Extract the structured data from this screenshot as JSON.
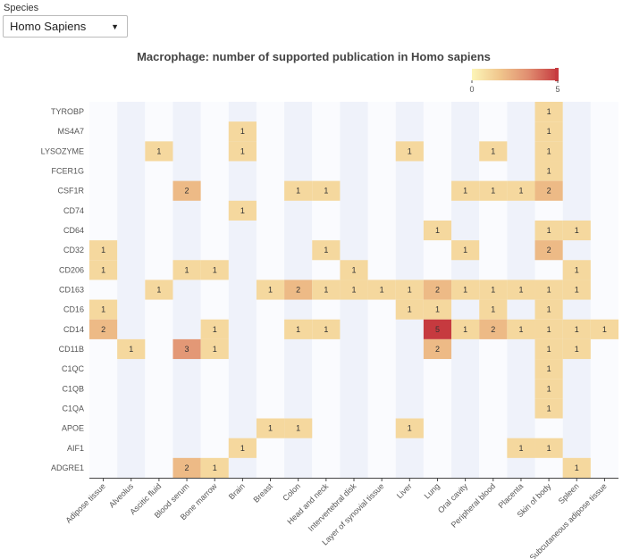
{
  "species": {
    "label": "Species",
    "selected": "Homo Sapiens"
  },
  "chart_data": {
    "type": "heatmap",
    "title": "Macrophage: number of supported publication in Homo sapiens",
    "x_categories": [
      "Adipose tissue",
      "Alveolus",
      "Ascitic fluid",
      "Blood serum",
      "Bone marrow",
      "Brain",
      "Breast",
      "Colon",
      "Head and neck",
      "Intervertebral disk",
      "Layer of synovial tissue",
      "Liver",
      "Lung",
      "Oral cavity",
      "Peripheral blood",
      "Placenta",
      "Skin of body",
      "Spleen",
      "Subcutaneous adipose tissue"
    ],
    "y_categories": [
      "TYROBP",
      "MS4A7",
      "LYSOZYME",
      "FCER1G",
      "CSF1R",
      "CD74",
      "CD64",
      "CD32",
      "CD206",
      "CD163",
      "CD16",
      "CD14",
      "CD11B",
      "C1QC",
      "C1QB",
      "C1QA",
      "APOE",
      "AIF1",
      "ADGRE1"
    ],
    "values": [
      [
        0,
        0,
        0,
        0,
        0,
        0,
        0,
        0,
        0,
        0,
        0,
        0,
        0,
        0,
        0,
        0,
        1,
        0,
        0
      ],
      [
        0,
        0,
        0,
        0,
        0,
        1,
        0,
        0,
        0,
        0,
        0,
        0,
        0,
        0,
        0,
        0,
        1,
        0,
        0
      ],
      [
        0,
        0,
        1,
        0,
        0,
        1,
        0,
        0,
        0,
        0,
        0,
        1,
        0,
        0,
        1,
        0,
        1,
        0,
        0
      ],
      [
        0,
        0,
        0,
        0,
        0,
        0,
        0,
        0,
        0,
        0,
        0,
        0,
        0,
        0,
        0,
        0,
        1,
        0,
        0
      ],
      [
        0,
        0,
        0,
        2,
        0,
        0,
        0,
        1,
        1,
        0,
        0,
        0,
        0,
        1,
        1,
        1,
        2,
        0,
        0
      ],
      [
        0,
        0,
        0,
        0,
        0,
        1,
        0,
        0,
        0,
        0,
        0,
        0,
        0,
        0,
        0,
        0,
        0,
        0,
        0
      ],
      [
        0,
        0,
        0,
        0,
        0,
        0,
        0,
        0,
        0,
        0,
        0,
        0,
        1,
        0,
        0,
        0,
        1,
        1,
        0
      ],
      [
        1,
        0,
        0,
        0,
        0,
        0,
        0,
        0,
        1,
        0,
        0,
        0,
        0,
        1,
        0,
        0,
        2,
        0,
        0
      ],
      [
        1,
        0,
        0,
        1,
        1,
        0,
        0,
        0,
        0,
        1,
        0,
        0,
        0,
        0,
        0,
        0,
        0,
        1,
        0
      ],
      [
        0,
        0,
        1,
        0,
        0,
        0,
        1,
        2,
        1,
        1,
        1,
        1,
        2,
        1,
        1,
        1,
        1,
        1,
        0
      ],
      [
        1,
        0,
        0,
        0,
        0,
        0,
        0,
        0,
        0,
        0,
        0,
        1,
        1,
        0,
        1,
        0,
        1,
        0,
        0
      ],
      [
        2,
        0,
        0,
        0,
        1,
        0,
        0,
        1,
        1,
        0,
        0,
        0,
        5,
        1,
        2,
        1,
        1,
        1,
        1
      ],
      [
        0,
        1,
        0,
        3,
        1,
        0,
        0,
        0,
        0,
        0,
        0,
        0,
        2,
        0,
        0,
        0,
        1,
        1,
        0
      ],
      [
        0,
        0,
        0,
        0,
        0,
        0,
        0,
        0,
        0,
        0,
        0,
        0,
        0,
        0,
        0,
        0,
        1,
        0,
        0
      ],
      [
        0,
        0,
        0,
        0,
        0,
        0,
        0,
        0,
        0,
        0,
        0,
        0,
        0,
        0,
        0,
        0,
        1,
        0,
        0
      ],
      [
        0,
        0,
        0,
        0,
        0,
        0,
        0,
        0,
        0,
        0,
        0,
        0,
        0,
        0,
        0,
        0,
        1,
        0,
        0
      ],
      [
        0,
        0,
        0,
        0,
        0,
        0,
        1,
        1,
        0,
        0,
        0,
        1,
        0,
        0,
        0,
        0,
        0,
        0,
        0
      ],
      [
        0,
        0,
        0,
        0,
        0,
        1,
        0,
        0,
        0,
        0,
        0,
        0,
        0,
        0,
        0,
        1,
        1,
        0,
        0
      ],
      [
        0,
        0,
        0,
        2,
        1,
        0,
        0,
        0,
        0,
        0,
        0,
        0,
        0,
        0,
        0,
        0,
        0,
        1,
        0
      ]
    ],
    "color_range": [
      0,
      5
    ],
    "colorscale": [
      "#fcf5b8",
      "#f0c58c",
      "#e08d70",
      "#c63a3f"
    ],
    "colorbar": {
      "ticks": [
        0,
        5
      ],
      "placement": "top-right"
    }
  }
}
